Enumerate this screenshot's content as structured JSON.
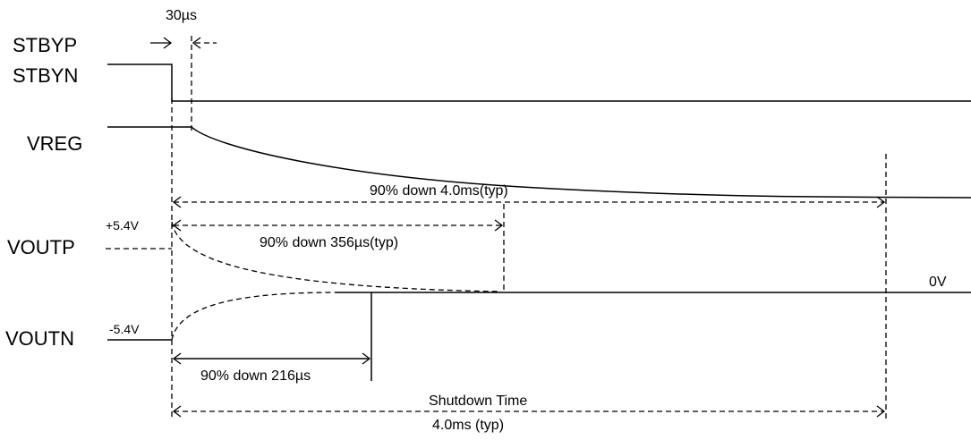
{
  "signals": {
    "stbyp": "STBYP",
    "stbyn": "STBYN",
    "vreg": "VREG",
    "voutp": "VOUTP",
    "voutn": "VOUTN"
  },
  "levels": {
    "pos": "+5.4V",
    "neg": "-5.4V",
    "zero": "0V"
  },
  "timings": {
    "delay": "30µs",
    "vreg_fall": "90% down 4.0ms(typ)",
    "voutp_fall": "90% down 356µs(typ)",
    "voutn_fall": "90% down 216µs",
    "shutdown_title": "Shutdown Time",
    "shutdown_value": "4.0ms (typ)"
  }
}
